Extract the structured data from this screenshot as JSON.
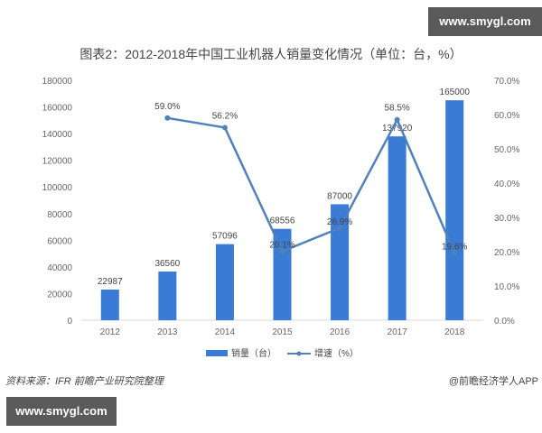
{
  "watermark": {
    "top": "www.smygl.com",
    "bottom": "www.smygl.com"
  },
  "title": "图表2：2012-2018年中国工业机器人销量变化情况（单位：台，%）",
  "footer": {
    "source": "资料来源：IFR 前瞻产业研究院整理",
    "credit": "@前瞻经济学人APP"
  },
  "colors": {
    "bar": "#3a7bd5",
    "line": "#4f81bd",
    "axis_text": "#666666"
  },
  "chart_data": {
    "type": "bar+line",
    "title": "图表2：2012-2018年中国工业机器人销量变化情况（单位：台，%）",
    "categories": [
      "2012",
      "2013",
      "2014",
      "2015",
      "2016",
      "2017",
      "2018"
    ],
    "series": [
      {
        "name": "销量（台）",
        "type": "bar",
        "axis": "left",
        "values": [
          22987,
          36560,
          57096,
          68556,
          87000,
          137920,
          165000
        ]
      },
      {
        "name": "增速（%）",
        "type": "line",
        "axis": "right",
        "values": [
          null,
          59.0,
          56.2,
          20.1,
          26.9,
          58.5,
          19.6
        ]
      }
    ],
    "y_left": {
      "ticks": [
        "0",
        "20000",
        "40000",
        "60000",
        "80000",
        "100000",
        "120000",
        "140000",
        "160000",
        "180000"
      ],
      "ylim": [
        0,
        180000
      ]
    },
    "y_right": {
      "ticks": [
        "0.0%",
        "10.0%",
        "20.0%",
        "30.0%",
        "40.0%",
        "50.0%",
        "60.0%",
        "70.0%"
      ],
      "ylim": [
        0,
        70
      ]
    },
    "bar_labels": [
      "22987",
      "36560",
      "57096",
      "68556",
      "87000",
      "137920",
      "165000"
    ],
    "line_labels": [
      "",
      "59.0%",
      "56.2%",
      "20.1%",
      "26.9%",
      "58.5%",
      "19.6%"
    ],
    "legend": [
      "销量（台）",
      "增速（%）"
    ],
    "legend_position": "bottom",
    "grid": false
  }
}
